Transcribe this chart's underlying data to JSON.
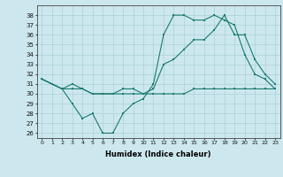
{
  "xlabel": "Humidex (Indice chaleur)",
  "xlim": [
    -0.5,
    23.5
  ],
  "ylim": [
    25.5,
    39.0
  ],
  "yticks": [
    26,
    27,
    28,
    29,
    30,
    31,
    32,
    33,
    34,
    35,
    36,
    37,
    38
  ],
  "xticks": [
    0,
    1,
    2,
    3,
    4,
    5,
    6,
    7,
    8,
    9,
    10,
    11,
    12,
    13,
    14,
    15,
    16,
    17,
    18,
    19,
    20,
    21,
    22,
    23
  ],
  "bg_color": "#cce8ee",
  "grid_color": "#aad0d8",
  "line_color": "#1a7a6e",
  "line1_y": [
    31.5,
    31.0,
    30.5,
    29.0,
    27.5,
    28.0,
    26.0,
    26.0,
    28.0,
    29.0,
    29.5,
    31.0,
    36.0,
    38.0,
    38.0,
    37.5,
    37.5,
    38.0,
    37.5,
    37.0,
    34.0,
    32.0,
    31.5,
    30.5
  ],
  "line2_y": [
    31.5,
    31.0,
    30.5,
    31.0,
    30.5,
    30.0,
    30.0,
    30.0,
    30.5,
    30.5,
    30.0,
    30.5,
    33.0,
    33.5,
    34.5,
    35.5,
    35.5,
    36.5,
    38.0,
    36.0,
    36.0,
    33.5,
    32.0,
    31.0
  ],
  "line3_y": [
    31.5,
    31.0,
    30.5,
    30.5,
    30.5,
    30.0,
    30.0,
    30.0,
    30.0,
    30.0,
    30.0,
    30.0,
    30.0,
    30.0,
    30.0,
    30.5,
    30.5,
    30.5,
    30.5,
    30.5,
    30.5,
    30.5,
    30.5,
    30.5
  ]
}
